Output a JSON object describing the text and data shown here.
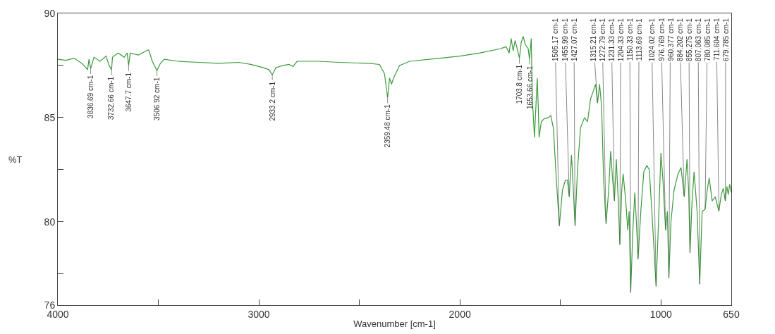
{
  "chart_data": {
    "type": "line",
    "xlabel": "Wavenumber [cm-1]",
    "ylabel": "%T",
    "xlim": [
      4000,
      650
    ],
    "ylim": [
      76,
      90
    ],
    "xticks": [
      4000,
      {
        "value": 3500,
        "label": null
      },
      3000,
      {
        "value": 2500,
        "label": null
      },
      2000,
      {
        "value": 1500,
        "label": null
      },
      1000,
      650
    ],
    "yticks": [
      90,
      {
        "value": 87.5,
        "label": null
      },
      85,
      {
        "value": 82.5,
        "label": null
      },
      80,
      {
        "value": 77.5,
        "label": null
      },
      76
    ],
    "x": [
      4000,
      3960,
      3920,
      3880,
      3852,
      3845,
      3836.69,
      3820,
      3790,
      3760,
      3745,
      3732.66,
      3728,
      3700,
      3670,
      3655,
      3647.7,
      3640,
      3600,
      3560,
      3548,
      3530,
      3506.92,
      3490,
      3470,
      3400,
      3300,
      3200,
      3100,
      3040,
      2980,
      2950,
      2933.2,
      2915,
      2880,
      2850,
      2830,
      2810,
      2700,
      2600,
      2450,
      2400,
      2375,
      2359.48,
      2350,
      2340,
      2330,
      2300,
      2250,
      2100,
      2000,
      1900,
      1800,
      1770,
      1755,
      1745,
      1735,
      1725,
      1715,
      1703.8,
      1695,
      1685,
      1675,
      1660,
      1653.66,
      1645,
      1640,
      1629,
      1622,
      1615,
      1610,
      1606,
      1595,
      1580,
      1560,
      1548,
      1535,
      1520,
      1505.17,
      1490,
      1475,
      1465,
      1455.99,
      1445,
      1438,
      1427.07,
      1415,
      1400,
      1380,
      1365,
      1350,
      1335,
      1325,
      1315.21,
      1305,
      1295,
      1285,
      1272.79,
      1260,
      1250,
      1240,
      1231.33,
      1222,
      1212,
      1204.33,
      1195,
      1188,
      1175,
      1165,
      1158,
      1150.33,
      1140,
      1130,
      1122,
      1113.69,
      1100,
      1085,
      1070,
      1058,
      1045,
      1024.02,
      1010,
      1000,
      990,
      976.769,
      968,
      960.377,
      950,
      935,
      915,
      900,
      884.202,
      870,
      862,
      855.275,
      845,
      835,
      820,
      807.063,
      795,
      780.085,
      770,
      760,
      745,
      730,
      711.604,
      700,
      690,
      679.785,
      672,
      665,
      658,
      650
    ],
    "series": [
      {
        "color": "#3c9b3c",
        "values": [
          87.8,
          87.75,
          87.85,
          87.6,
          87.3,
          87.8,
          87.35,
          87.9,
          87.7,
          87.95,
          87.5,
          87.3,
          87.9,
          88.1,
          87.9,
          88.1,
          87.5,
          88.1,
          88.0,
          88.2,
          88.25,
          87.7,
          87.25,
          87.6,
          87.8,
          87.7,
          87.65,
          87.6,
          87.65,
          87.55,
          87.4,
          87.3,
          87.05,
          87.4,
          87.5,
          87.55,
          87.45,
          87.7,
          87.7,
          87.65,
          87.6,
          87.55,
          87.1,
          85.95,
          86.9,
          86.6,
          86.9,
          87.5,
          87.7,
          87.85,
          87.95,
          88.1,
          88.3,
          88.4,
          88.1,
          88.8,
          88.2,
          88.7,
          88.3,
          87.85,
          88.6,
          88.9,
          88.5,
          88.3,
          87.8,
          88.8,
          86.0,
          84.05,
          85.5,
          86.9,
          85.5,
          84.05,
          84.8,
          84.95,
          85.0,
          85.1,
          84.5,
          82.0,
          79.8,
          81.5,
          82.0,
          82.0,
          81.2,
          83.2,
          82.0,
          79.8,
          82.5,
          84.5,
          85.0,
          84.8,
          85.9,
          86.3,
          86.6,
          85.7,
          86.6,
          85.5,
          82.0,
          79.9,
          81.5,
          83.4,
          82.0,
          81.0,
          83.0,
          81.0,
          78.9,
          81.5,
          82.3,
          81.0,
          79.6,
          80.5,
          76.6,
          79.5,
          81.4,
          80.0,
          78.2,
          80.5,
          82.4,
          82.7,
          82.5,
          80.5,
          76.9,
          80.5,
          83.3,
          82.0,
          79.6,
          80.5,
          77.3,
          80.0,
          81.5,
          82.3,
          82.6,
          81.2,
          83.0,
          81.5,
          78.5,
          81.0,
          82.4,
          80.5,
          77.0,
          80.5,
          80.6,
          81.5,
          82.1,
          81.0,
          81.2,
          80.5,
          81.3,
          81.6,
          81.0,
          81.7,
          81.3,
          81.8,
          81.4
        ]
      }
    ],
    "annotations": [
      {
        "text": "3836.69 cm-1",
        "x": 3836.69,
        "y": 87.35
      },
      {
        "text": "3732.66 cm-1",
        "x": 3732.66,
        "y": 87.3
      },
      {
        "text": "3647.7 cm-1",
        "x": 3647.7,
        "y": 87.5
      },
      {
        "text": "3506.92 cm-1",
        "x": 3506.92,
        "y": 87.25
      },
      {
        "text": "2933.2 cm-1",
        "x": 2933.2,
        "y": 87.05
      },
      {
        "text": "2359.48 cm-1",
        "x": 2359.48,
        "y": 85.95
      },
      {
        "text": "1703.8 cm-1",
        "x": 1703.8,
        "y": 87.85
      },
      {
        "text": "1653.66 cm-1",
        "x": 1653.66,
        "y": 87.8
      },
      {
        "text": "1505.17 cm-1",
        "x": 1505.17,
        "y": 79.8
      },
      {
        "text": "1455.99 cm-1",
        "x": 1455.99,
        "y": 81.2
      },
      {
        "text": "1427.07 cm-1",
        "x": 1427.07,
        "y": 79.8
      },
      {
        "text": "1315.21 cm-1",
        "x": 1315.21,
        "y": 85.7
      },
      {
        "text": "1272.79 cm-1",
        "x": 1272.79,
        "y": 79.9
      },
      {
        "text": "1231.33 cm-1",
        "x": 1231.33,
        "y": 81.0
      },
      {
        "text": "1204.33 cm-1",
        "x": 1204.33,
        "y": 78.9
      },
      {
        "text": "1150.33 cm-1",
        "x": 1150.33,
        "y": 76.6
      },
      {
        "text": "1113.69 cm-1",
        "x": 1113.69,
        "y": 78.2
      },
      {
        "text": "1024.02 cm-1",
        "x": 1024.02,
        "y": 76.9
      },
      {
        "text": "976.769 cm-1",
        "x": 976.769,
        "y": 79.6
      },
      {
        "text": "960.377 cm-1",
        "x": 960.377,
        "y": 77.3
      },
      {
        "text": "884.202 cm-1",
        "x": 884.202,
        "y": 81.2
      },
      {
        "text": "855.275 cm-1",
        "x": 855.275,
        "y": 78.5
      },
      {
        "text": "807.063 cm-1",
        "x": 807.063,
        "y": 77.0
      },
      {
        "text": "780.085 cm-1",
        "x": 780.085,
        "y": 80.6
      },
      {
        "text": "711.604 cm-1",
        "x": 711.604,
        "y": 80.5
      },
      {
        "text": "679.785 cm-1",
        "x": 679.785,
        "y": 81.0
      }
    ]
  }
}
